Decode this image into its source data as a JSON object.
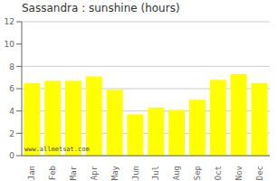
{
  "chart_data": {
    "type": "bar",
    "title": "Sassandra : sunshine (hours)",
    "categories": [
      "Jan",
      "Feb",
      "Mar",
      "Apr",
      "May",
      "Jun",
      "Jul",
      "Aug",
      "Sep",
      "Oct",
      "Nov",
      "Dec"
    ],
    "values": [
      6.5,
      6.7,
      6.7,
      7.1,
      5.9,
      3.7,
      4.3,
      4.1,
      5.0,
      6.8,
      7.3,
      6.5
    ],
    "color": "#ffff00",
    "ylim": [
      0,
      12
    ],
    "yticks": [
      0,
      2,
      4,
      6,
      8,
      10,
      12
    ],
    "grid": true,
    "annotation": "www.allmetsat.com"
  }
}
